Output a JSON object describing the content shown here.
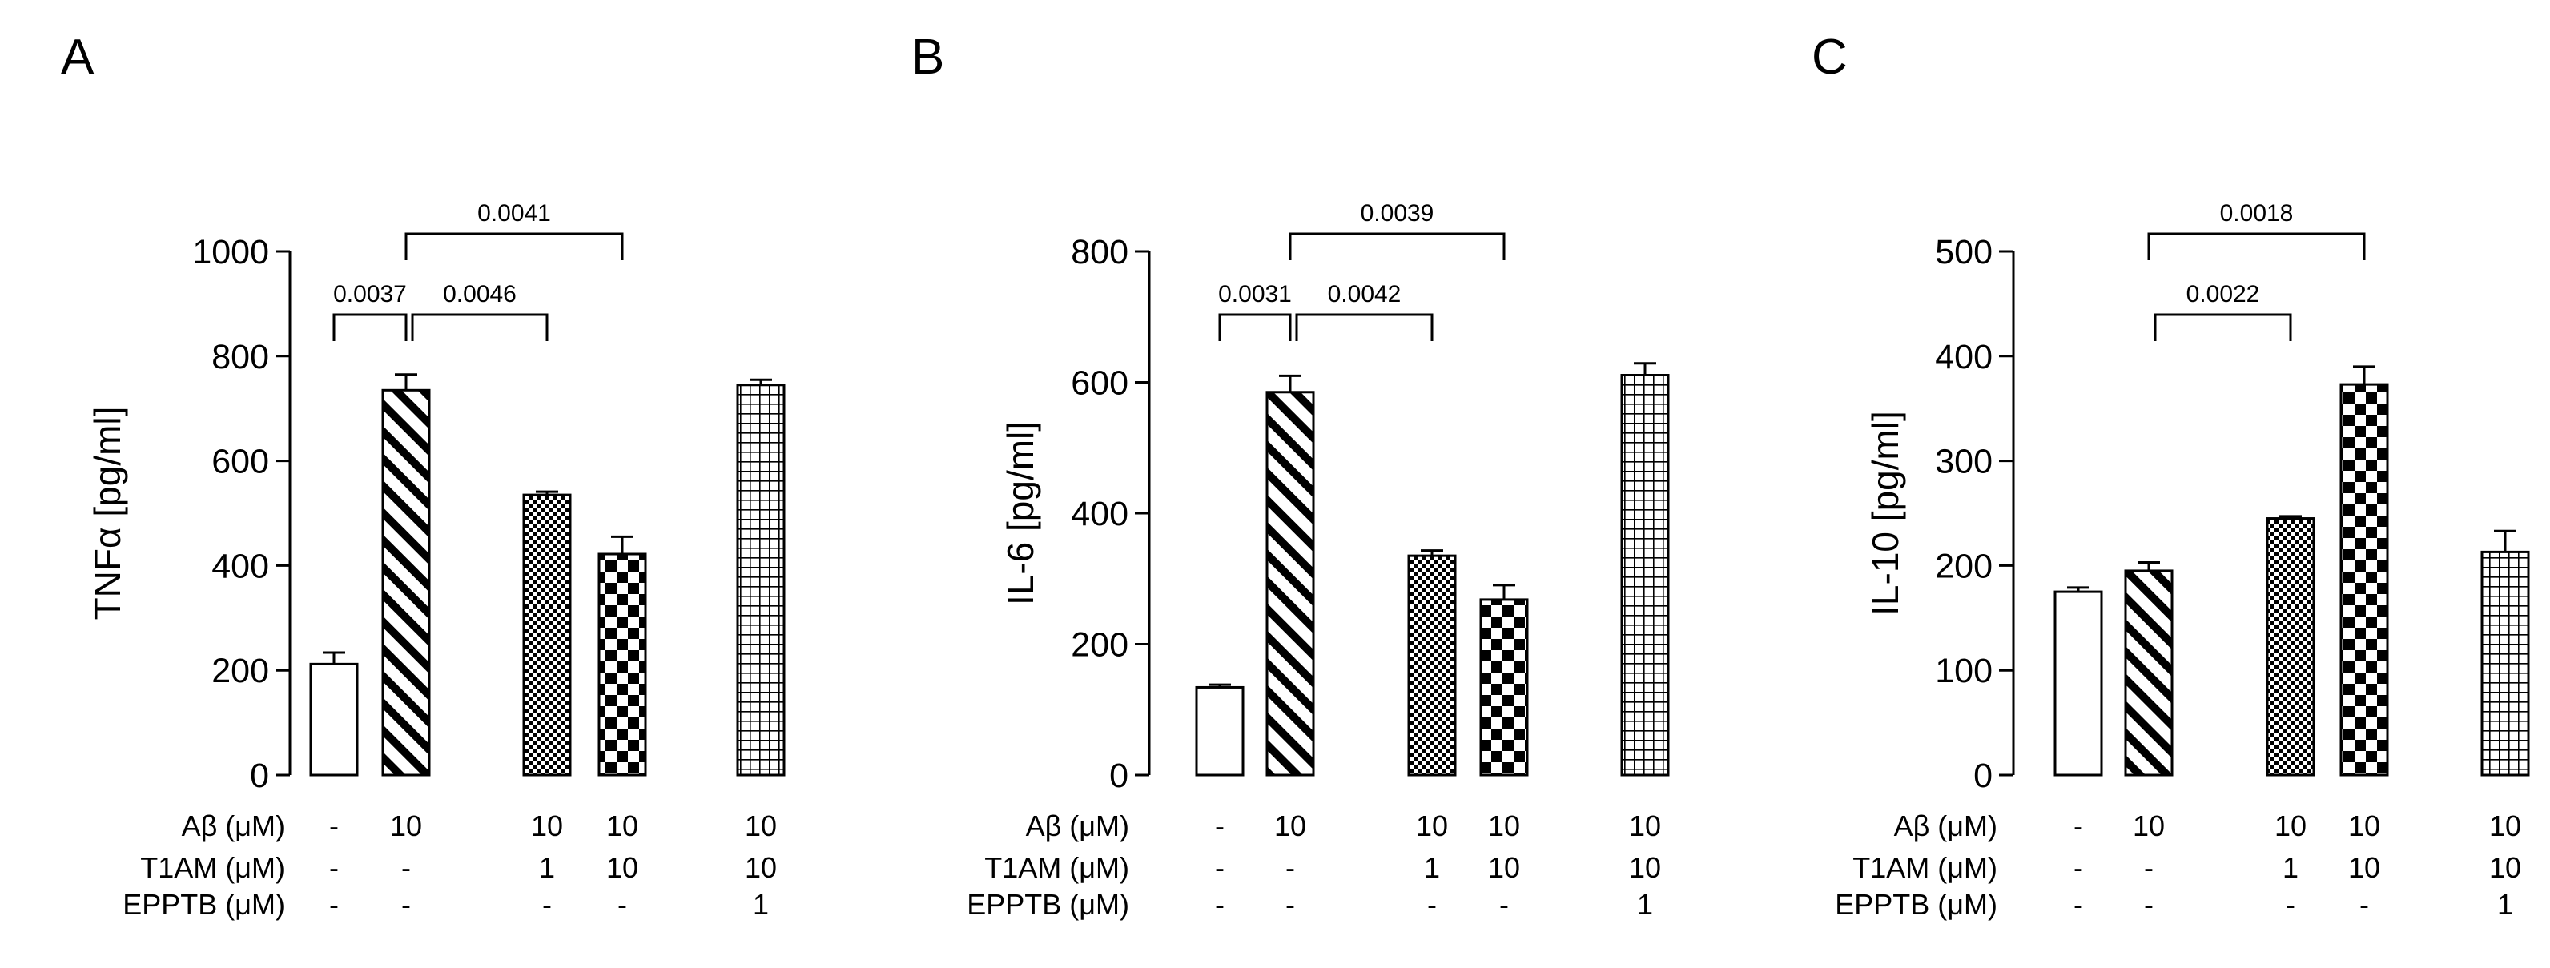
{
  "charts": [
    {
      "panel": "A",
      "chart_data": {
        "type": "bar",
        "ylabel": "TNFα [pg/ml]",
        "ylim": [
          0,
          1000
        ],
        "yticks": [
          0,
          200,
          400,
          600,
          800,
          1000
        ],
        "categories": [
          "-/-/-",
          "10/-/-",
          "10/1/-",
          "10/10/-",
          "10/10/1"
        ],
        "values": [
          212,
          735,
          535,
          422,
          745
        ],
        "errors": [
          22,
          30,
          6,
          33,
          10
        ],
        "patterns": [
          "none",
          "diag",
          "fine-check",
          "checker",
          "grid"
        ],
        "conditions": {
          "Aβ (μM)": [
            "-",
            "10",
            "10",
            "10",
            "10"
          ],
          "T1AM (μM)": [
            "-",
            "-",
            "1",
            "10",
            "10"
          ],
          "EPPTB (μM)": [
            "-",
            "-",
            "-",
            "-",
            "1"
          ]
        },
        "comparisons": [
          {
            "from": 0,
            "to": 1,
            "label": "0.0037",
            "level": 0
          },
          {
            "from": 1,
            "to": 2,
            "label": "0.0046",
            "level": 0
          },
          {
            "from": 1,
            "to": 3,
            "label": "0.0041",
            "level": 1
          }
        ]
      }
    },
    {
      "panel": "B",
      "chart_data": {
        "type": "bar",
        "ylabel": "IL-6 [pg/ml]",
        "ylim": [
          0,
          800
        ],
        "yticks": [
          0,
          200,
          400,
          600,
          800
        ],
        "categories": [
          "-/-/-",
          "10/-/-",
          "10/1/-",
          "10/10/-",
          "10/10/1"
        ],
        "values": [
          134,
          585,
          335,
          268,
          611
        ],
        "errors": [
          4,
          25,
          8,
          22,
          18
        ],
        "patterns": [
          "none",
          "diag",
          "fine-check",
          "checker",
          "grid"
        ],
        "conditions": {
          "Aβ (μM)": [
            "-",
            "10",
            "10",
            "10",
            "10"
          ],
          "T1AM (μM)": [
            "-",
            "-",
            "1",
            "10",
            "10"
          ],
          "EPPTB (μM)": [
            "-",
            "-",
            "-",
            "-",
            "1"
          ]
        },
        "comparisons": [
          {
            "from": 0,
            "to": 1,
            "label": "0.0031",
            "level": 0
          },
          {
            "from": 1,
            "to": 2,
            "label": "0.0042",
            "level": 0
          },
          {
            "from": 1,
            "to": 3,
            "label": "0.0039",
            "level": 1
          }
        ]
      }
    },
    {
      "panel": "C",
      "chart_data": {
        "type": "bar",
        "ylabel": "IL-10 [pg/ml]",
        "ylim": [
          0,
          500
        ],
        "yticks": [
          0,
          100,
          200,
          300,
          400,
          500
        ],
        "categories": [
          "-/-/-",
          "10/-/-",
          "10/1/-",
          "10/10/-",
          "10/10/1"
        ],
        "values": [
          175,
          195,
          245,
          373,
          213
        ],
        "errors": [
          4,
          8,
          2,
          17,
          20
        ],
        "patterns": [
          "none",
          "diag",
          "fine-check",
          "checker",
          "grid"
        ],
        "conditions": {
          "Aβ (μM)": [
            "-",
            "10",
            "10",
            "10",
            "10"
          ],
          "T1AM (μM)": [
            "-",
            "-",
            "1",
            "10",
            "10"
          ],
          "EPPTB (μM)": [
            "-",
            "-",
            "-",
            "-",
            "1"
          ]
        },
        "comparisons": [
          {
            "from": 1,
            "to": 2,
            "label": "0.0022",
            "level": 0
          },
          {
            "from": 1,
            "to": 3,
            "label": "0.0018",
            "level": 1
          }
        ]
      }
    }
  ]
}
